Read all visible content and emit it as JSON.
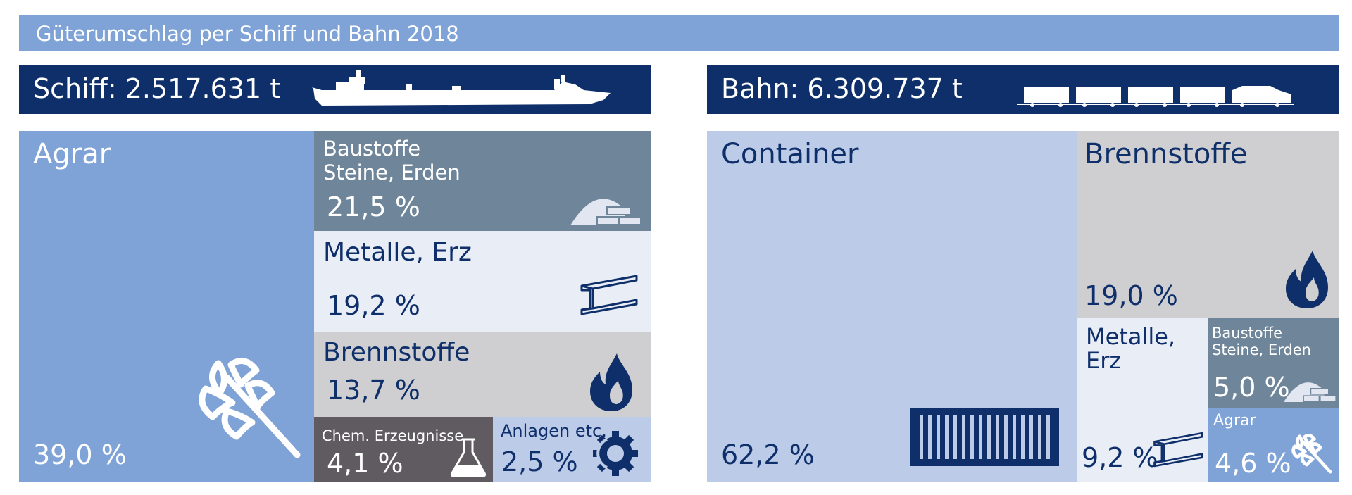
{
  "title": "Güterumschlag per Schiff und Bahn 2018",
  "colors": {
    "title_bar": "#7fa3d6",
    "header": "#0f2f6a",
    "agrar": "#7fa3d6",
    "baustoffe": "#6f8599",
    "metalle": "#e9edf6",
    "brennstoffe": "#cfcfd1",
    "chem": "#5f5b60",
    "anlagen": "#bccbe8",
    "container": "#bccbe8",
    "navy": "#0f2f6a"
  },
  "chart_data": [
    {
      "type": "treemap",
      "mode": "Schiff",
      "header": "Schiff: 2.517.631 t",
      "header_icon": "ship-icon",
      "items": [
        {
          "category": "Agrar",
          "value": 39.0,
          "label": "39,0 %",
          "icon": "wheat-icon"
        },
        {
          "category": "Baustoffe Steine, Erden",
          "lines": [
            "Baustoffe",
            "Steine, Erden"
          ],
          "value": 21.5,
          "label": "21,5 %",
          "icon": "sand-pile-bricks-icon"
        },
        {
          "category": "Metalle, Erz",
          "value": 19.2,
          "label": "19,2 %",
          "icon": "steel-beam-icon"
        },
        {
          "category": "Brennstoffe",
          "value": 13.7,
          "label": "13,7 %",
          "icon": "flame-icon"
        },
        {
          "category": "Chem. Erzeugnisse",
          "value": 4.1,
          "label": "4,1 %",
          "icon": "flask-icon"
        },
        {
          "category": "Anlagen etc.",
          "value": 2.5,
          "label": "2,5 %",
          "icon": "gear-icon"
        }
      ]
    },
    {
      "type": "treemap",
      "mode": "Bahn",
      "header": "Bahn: 6.309.737 t",
      "header_icon": "train-icon",
      "items": [
        {
          "category": "Container",
          "value": 62.2,
          "label": "62,2 %",
          "icon": "container-icon"
        },
        {
          "category": "Brennstoffe",
          "value": 19.0,
          "label": "19,0 %",
          "icon": "flame-icon"
        },
        {
          "category": "Metalle, Erz",
          "lines": [
            "Metalle,",
            "Erz"
          ],
          "value": 9.2,
          "label": "9,2 %",
          "icon": "steel-beam-icon"
        },
        {
          "category": "Baustoffe Steine, Erden",
          "lines": [
            "Baustoffe",
            "Steine, Erden"
          ],
          "value": 5.0,
          "label": "5,0 %",
          "icon": "sand-pile-bricks-icon"
        },
        {
          "category": "Agrar",
          "value": 4.6,
          "label": "4,6 %",
          "icon": "wheat-icon"
        }
      ]
    }
  ]
}
